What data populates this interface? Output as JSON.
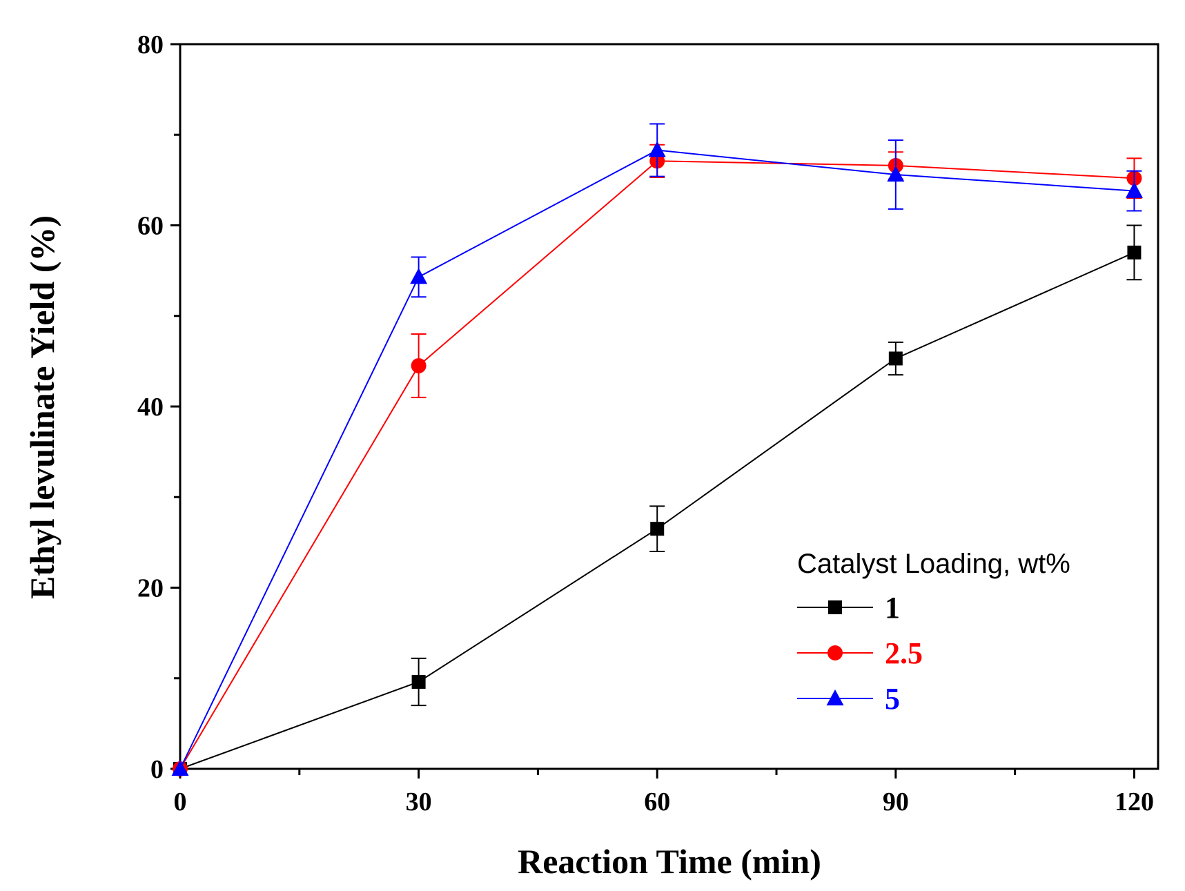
{
  "chart_data": {
    "type": "line",
    "title": "",
    "xlabel": "Reaction Time (min)",
    "ylabel": "Ethyl levulinate Yield (%)",
    "xlim": [
      0,
      123
    ],
    "ylim": [
      0,
      80
    ],
    "x_ticks": [
      0,
      30,
      60,
      90,
      120
    ],
    "y_ticks": [
      0,
      20,
      40,
      60,
      80
    ],
    "x_minor_ticks": [
      15,
      45,
      75,
      105
    ],
    "y_minor_ticks": [
      10,
      30,
      50,
      70
    ],
    "grid": false,
    "legend": {
      "title": "Catalyst Loading, wt%",
      "position": "bottom-right"
    },
    "series": [
      {
        "name": "1",
        "color": "#000000",
        "marker": "square",
        "x": [
          0,
          30,
          60,
          90,
          120
        ],
        "y": [
          0,
          9.6,
          26.5,
          45.3,
          57.0
        ],
        "err": [
          0,
          2.6,
          2.5,
          1.8,
          3.0
        ]
      },
      {
        "name": "2.5",
        "color": "#ff0000",
        "marker": "circle",
        "x": [
          0,
          30,
          60,
          90,
          120
        ],
        "y": [
          0,
          44.5,
          67.1,
          66.6,
          65.2
        ],
        "err": [
          0,
          3.5,
          1.8,
          1.5,
          2.2
        ]
      },
      {
        "name": "5",
        "color": "#0000ff",
        "marker": "triangle",
        "x": [
          0,
          30,
          60,
          90,
          120
        ],
        "y": [
          0,
          54.3,
          68.3,
          65.6,
          63.8
        ],
        "err": [
          0,
          2.2,
          2.9,
          3.8,
          2.2
        ]
      }
    ]
  }
}
